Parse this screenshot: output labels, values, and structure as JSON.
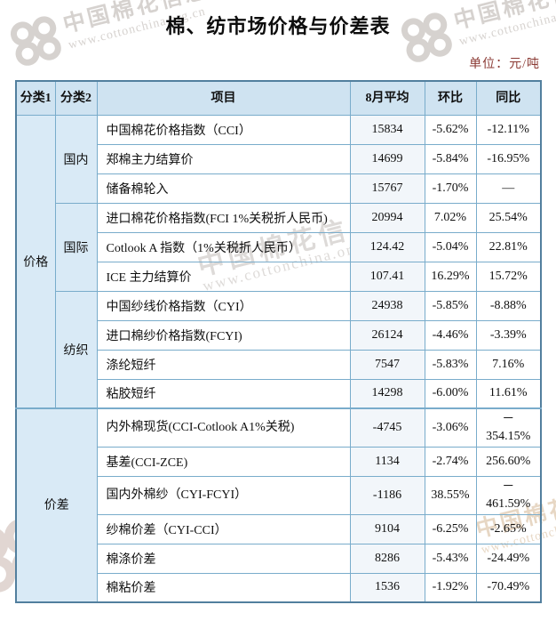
{
  "page": {
    "title": "棉、纺市场价格与价差表",
    "unit_label": "单位：元/吨"
  },
  "watermark": {
    "site_name": "中国棉花信息网",
    "site_url": "www.cottonchina.org.cn",
    "logo": "cotton-rings-logo"
  },
  "colors": {
    "border_blue": "#79accb",
    "outer_border": "#527f9e",
    "header_bg": "#cfe3f1",
    "category_bg": "#d9eaf6",
    "avg_column_bg": "#f2f6fa",
    "unit_text": "#8b3a34"
  },
  "table": {
    "headers": {
      "cat1": "分类1",
      "cat2": "分类2",
      "item": "项目",
      "avg": "8月平均",
      "mom": "环比",
      "yoy": "同比"
    },
    "sections": [
      {
        "category1": "价格",
        "merged": false,
        "groups": [
          {
            "category2": "国内",
            "rows": [
              {
                "item": "中国棉花价格指数（CCI）",
                "avg": "15834",
                "mom": "-5.62%",
                "yoy": "-12.11%"
              },
              {
                "item": "郑棉主力结算价",
                "avg": "14699",
                "mom": "-5.84%",
                "yoy": "-16.95%"
              },
              {
                "item": "储备棉轮入",
                "avg": "15767",
                "mom": "-1.70%",
                "yoy": "—"
              }
            ]
          },
          {
            "category2": "国际",
            "rows": [
              {
                "item": "进口棉花价格指数(FCI 1%关税折人民币)",
                "avg": "20994",
                "mom": "7.02%",
                "yoy": "25.54%"
              },
              {
                "item": "Cotlook A 指数（1%关税折人民币）",
                "avg": "124.42",
                "mom": "-5.04%",
                "yoy": "22.81%"
              },
              {
                "item": "ICE 主力结算价",
                "avg": "107.41",
                "mom": "16.29%",
                "yoy": "15.72%"
              }
            ]
          },
          {
            "category2": "纺织",
            "rows": [
              {
                "item": "中国纱线价格指数（CYI）",
                "avg": "24938",
                "mom": "-5.85%",
                "yoy": "-8.88%"
              },
              {
                "item": "进口棉纱价格指数(FCYI)",
                "avg": "26124",
                "mom": "-4.46%",
                "yoy": "-3.39%"
              },
              {
                "item": "涤纶短纤",
                "avg": "7547",
                "mom": "-5.83%",
                "yoy": "7.16%"
              },
              {
                "item": "粘胶短纤",
                "avg": "14298",
                "mom": "-6.00%",
                "yoy": "11.61%"
              }
            ]
          }
        ]
      },
      {
        "category1": "价差",
        "merged": true,
        "groups": [
          {
            "category2": null,
            "rows": [
              {
                "item": "内外棉现货(CCI-Cotlook A1%关税)",
                "avg": "-4745",
                "mom": "-3.06%",
                "yoy": [
                  "－",
                  "354.15%"
                ]
              },
              {
                "item": "基差(CCI-ZCE)",
                "avg": "1134",
                "mom": "-2.74%",
                "yoy": "256.60%"
              },
              {
                "item": "国内外棉纱（CYI-FCYI）",
                "avg": "-1186",
                "mom": "38.55%",
                "yoy": [
                  "－",
                  "461.59%"
                ]
              },
              {
                "item": "纱棉价差（CYI-CCI）",
                "avg": "9104",
                "mom": "-6.25%",
                "yoy": "-2.65%"
              },
              {
                "item": "棉涤价差",
                "avg": "8286",
                "mom": "-5.43%",
                "yoy": "-24.49%"
              },
              {
                "item": "棉粘价差",
                "avg": "1536",
                "mom": "-1.92%",
                "yoy": "-70.49%"
              }
            ]
          }
        ]
      }
    ]
  }
}
